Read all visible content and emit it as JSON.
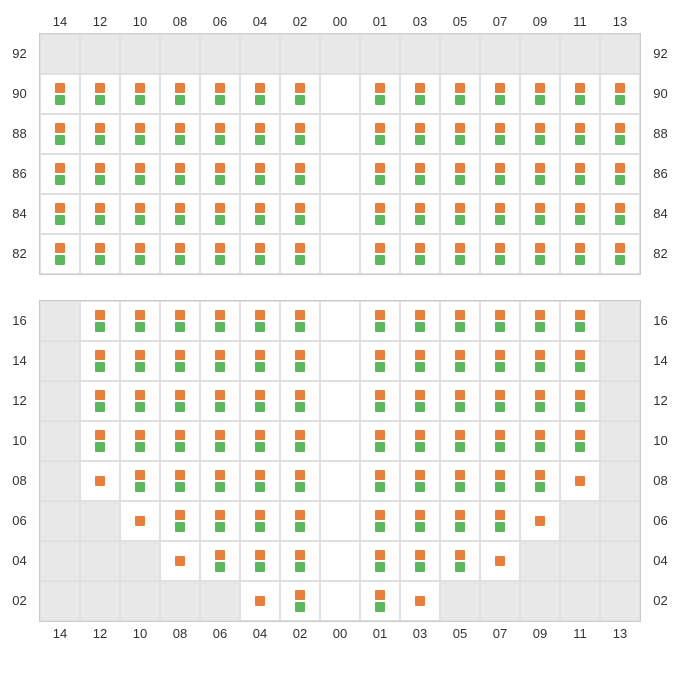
{
  "colors": {
    "orange": "#e67e3c",
    "green": "#5cb85c",
    "empty_bg": "#e8e8e8",
    "filled_bg": "#ffffff",
    "border": "#e0e0e0",
    "label": "#333333"
  },
  "layout": {
    "cell_size": 40,
    "marker_size": 10,
    "col_count": 15
  },
  "col_labels": [
    "14",
    "12",
    "10",
    "08",
    "06",
    "04",
    "02",
    "00",
    "01",
    "03",
    "05",
    "07",
    "09",
    "11",
    "13"
  ],
  "upper": {
    "row_labels": [
      "92",
      "90",
      "88",
      "86",
      "84",
      "82"
    ],
    "rows": [
      {
        "cells": [
          0,
          0,
          0,
          0,
          0,
          0,
          0,
          0,
          0,
          0,
          0,
          0,
          0,
          0,
          0
        ]
      },
      {
        "cells": [
          2,
          2,
          2,
          2,
          2,
          2,
          2,
          1,
          2,
          2,
          2,
          2,
          2,
          2,
          2
        ]
      },
      {
        "cells": [
          2,
          2,
          2,
          2,
          2,
          2,
          2,
          1,
          2,
          2,
          2,
          2,
          2,
          2,
          2
        ]
      },
      {
        "cells": [
          2,
          2,
          2,
          2,
          2,
          2,
          2,
          1,
          2,
          2,
          2,
          2,
          2,
          2,
          2
        ]
      },
      {
        "cells": [
          2,
          2,
          2,
          2,
          2,
          2,
          2,
          1,
          2,
          2,
          2,
          2,
          2,
          2,
          2
        ]
      },
      {
        "cells": [
          2,
          2,
          2,
          2,
          2,
          2,
          2,
          1,
          2,
          2,
          2,
          2,
          2,
          2,
          2
        ]
      }
    ]
  },
  "lower": {
    "row_labels": [
      "16",
      "14",
      "12",
      "10",
      "08",
      "06",
      "04",
      "02"
    ],
    "rows": [
      {
        "cells": [
          0,
          2,
          2,
          2,
          2,
          2,
          2,
          1,
          2,
          2,
          2,
          2,
          2,
          2,
          0
        ]
      },
      {
        "cells": [
          0,
          2,
          2,
          2,
          2,
          2,
          2,
          1,
          2,
          2,
          2,
          2,
          2,
          2,
          0
        ]
      },
      {
        "cells": [
          0,
          2,
          2,
          2,
          2,
          2,
          2,
          1,
          2,
          2,
          2,
          2,
          2,
          2,
          0
        ]
      },
      {
        "cells": [
          0,
          2,
          2,
          2,
          2,
          2,
          2,
          1,
          2,
          2,
          2,
          2,
          2,
          2,
          0
        ]
      },
      {
        "cells": [
          0,
          3,
          2,
          2,
          2,
          2,
          2,
          1,
          2,
          2,
          2,
          2,
          2,
          3,
          0
        ]
      },
      {
        "cells": [
          0,
          0,
          3,
          2,
          2,
          2,
          2,
          1,
          2,
          2,
          2,
          2,
          3,
          0,
          0
        ]
      },
      {
        "cells": [
          0,
          0,
          0,
          3,
          2,
          2,
          2,
          1,
          2,
          2,
          2,
          3,
          0,
          0,
          0
        ]
      },
      {
        "cells": [
          0,
          0,
          0,
          0,
          0,
          3,
          2,
          1,
          2,
          3,
          0,
          0,
          0,
          0,
          0
        ]
      }
    ]
  },
  "cell_legend": {
    "0": "empty gray",
    "1": "filled white no markers",
    "2": "filled white orange+green markers",
    "3": "filled white orange marker only"
  }
}
